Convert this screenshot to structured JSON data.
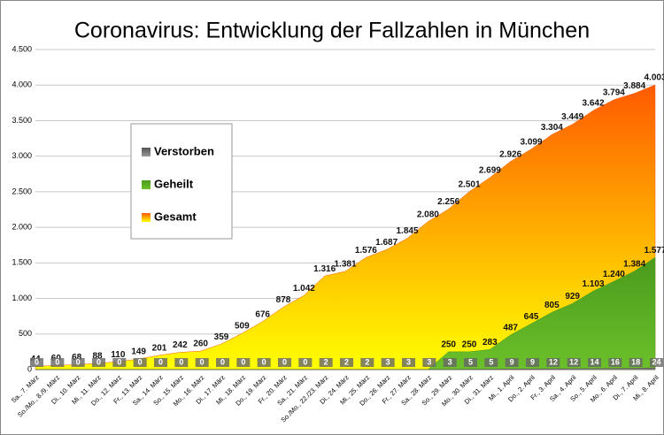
{
  "chart_data": {
    "type": "area",
    "title": "Coronavirus: Entwicklung der Fallzahlen in München",
    "categories": [
      "Sa., 7. März",
      "So./Mo., 8./9. März",
      "Di., 10. März",
      "Mi., 11. März",
      "Do., 12. März",
      "Fr., 13. März",
      "Sa., 14. März",
      "So., 15. März",
      "Mo., 16. März",
      "Di., 17. März",
      "Mi., 18. März",
      "Do., 19. März",
      "Fr., 20. März",
      "Sa., 21. März",
      "So./Mo., 22./23. März",
      "Di., 24. März",
      "Mi., 25. März",
      "Do., 26. März",
      "Fr., 27. März",
      "Sa., 28. März",
      "So., 29. März",
      "Mo., 30. März",
      "Di., 31. März",
      "Mi., 1. April",
      "Do., 2. April",
      "Fr., 3. April",
      "Sa., 4. April",
      "So., 5. April",
      "Mo., 6. April",
      "Di., 7. April",
      "Mi., 8. April"
    ],
    "series": [
      {
        "name": "Gesamt",
        "color": "#ff5a00",
        "values": [
          44,
          60,
          68,
          88,
          110,
          149,
          201,
          242,
          260,
          359,
          509,
          676,
          878,
          1042,
          1316,
          1381,
          1576,
          1687,
          1845,
          2080,
          2256,
          2501,
          2699,
          2926,
          3099,
          3304,
          3449,
          3642,
          3794,
          3884,
          4003
        ],
        "value_labels": [
          "44",
          "60",
          "68",
          "88",
          "110",
          "149",
          "201",
          "242",
          "260",
          "359",
          "509",
          "676",
          "878",
          "1.042",
          "1.316",
          "1.381",
          "1.576",
          "1.687",
          "1.845",
          "2.080",
          "2.256",
          "2.501",
          "2.699",
          "2.926",
          "3.099",
          "3.304",
          "3.449",
          "3.642",
          "3.794",
          "3.884",
          "4.003"
        ]
      },
      {
        "name": "Geheilt",
        "color": "#4a9a1c",
        "values": [
          0,
          0,
          0,
          0,
          0,
          0,
          0,
          0,
          0,
          0,
          0,
          0,
          0,
          0,
          0,
          0,
          0,
          0,
          0,
          0,
          250,
          250,
          283,
          487,
          645,
          805,
          929,
          1103,
          1240,
          1384,
          1577
        ],
        "value_labels": [
          "0",
          "0",
          "0",
          "0",
          "0",
          "0",
          "0",
          "0",
          "0",
          "0",
          "0",
          "0",
          "0",
          "0",
          "0",
          "0",
          "0",
          "0",
          "0",
          "0",
          "250",
          "250",
          "283",
          "487",
          "645",
          "805",
          "929",
          "1.103",
          "1.240",
          "1.384",
          "1.577"
        ]
      },
      {
        "name": "Verstorben",
        "color": "#555555",
        "values": [
          0,
          0,
          0,
          0,
          0,
          0,
          0,
          0,
          0,
          0,
          0,
          0,
          0,
          0,
          2,
          2,
          2,
          3,
          3,
          3,
          3,
          5,
          5,
          9,
          9,
          12,
          12,
          14,
          16,
          18,
          24
        ]
      }
    ],
    "ylim": [
      0,
      4500
    ],
    "yticks": [
      0,
      {
        "value": 500,
        "label": "500"
      },
      {
        "value": 1000,
        "label": "1.000"
      },
      {
        "value": 1500,
        "label": "1.500"
      },
      {
        "value": 2000,
        "label": "2.000"
      },
      {
        "value": 2500,
        "label": "2.500"
      },
      {
        "value": 3000,
        "label": "3.000"
      },
      {
        "value": 3500,
        "label": "3.500"
      },
      {
        "value": 4000,
        "label": "4.000"
      },
      {
        "value": 4500,
        "label": "4.500"
      }
    ],
    "grid": true
  }
}
